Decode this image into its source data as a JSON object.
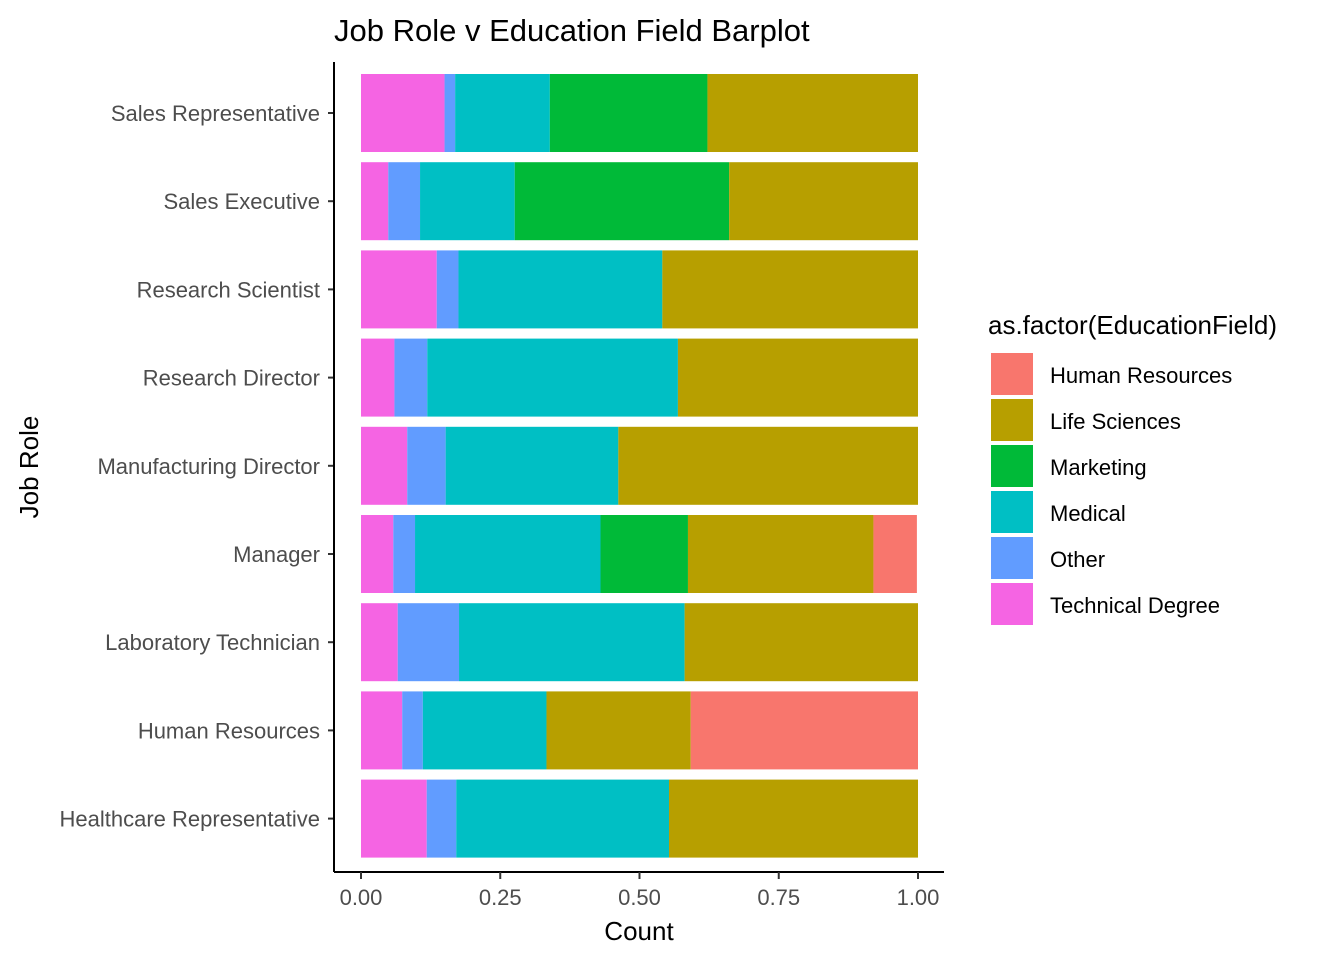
{
  "chart_data": {
    "type": "bar",
    "orientation": "horizontal",
    "stacked": "fill",
    "title": "Job Role v Education Field Barplot",
    "xlabel": "Count",
    "ylabel": "Job Role",
    "xlim": [
      0,
      1
    ],
    "x_ticks": [
      "0.00",
      "0.25",
      "0.50",
      "0.75",
      "1.00"
    ],
    "x_tick_values": [
      0,
      0.25,
      0.5,
      0.75,
      1
    ],
    "grid": false,
    "legend_title": "as.factor(EducationField)",
    "legend_position": "right",
    "categories": [
      "Healthcare Representative",
      "Human Resources",
      "Laboratory Technician",
      "Manager",
      "Manufacturing Director",
      "Research Director",
      "Research Scientist",
      "Sales Executive",
      "Sales Representative"
    ],
    "series": [
      {
        "name": "Human Resources",
        "color": "#F8766D",
        "values": [
          0,
          0.408,
          0,
          0.078,
          0,
          0,
          0,
          0,
          0
        ]
      },
      {
        "name": "Life Sciences",
        "color": "#B79F00",
        "values": [
          0.447,
          0.259,
          0.419,
          0.333,
          0.538,
          0.431,
          0.459,
          0.339,
          0.378
        ]
      },
      {
        "name": "Marketing",
        "color": "#00BA38",
        "values": [
          0,
          0,
          0,
          0.157,
          0,
          0,
          0,
          0.385,
          0.283
        ]
      },
      {
        "name": "Medical",
        "color": "#00BFC4",
        "values": [
          0.382,
          0.222,
          0.405,
          0.333,
          0.31,
          0.45,
          0.366,
          0.17,
          0.17
        ]
      },
      {
        "name": "Other",
        "color": "#619CFF",
        "values": [
          0.053,
          0.037,
          0.11,
          0.039,
          0.069,
          0.059,
          0.039,
          0.057,
          0.019
        ]
      },
      {
        "name": "Technical Degree",
        "color": "#F564E3",
        "values": [
          0.118,
          0.074,
          0.066,
          0.058,
          0.083,
          0.06,
          0.136,
          0.049,
          0.15
        ]
      }
    ]
  }
}
